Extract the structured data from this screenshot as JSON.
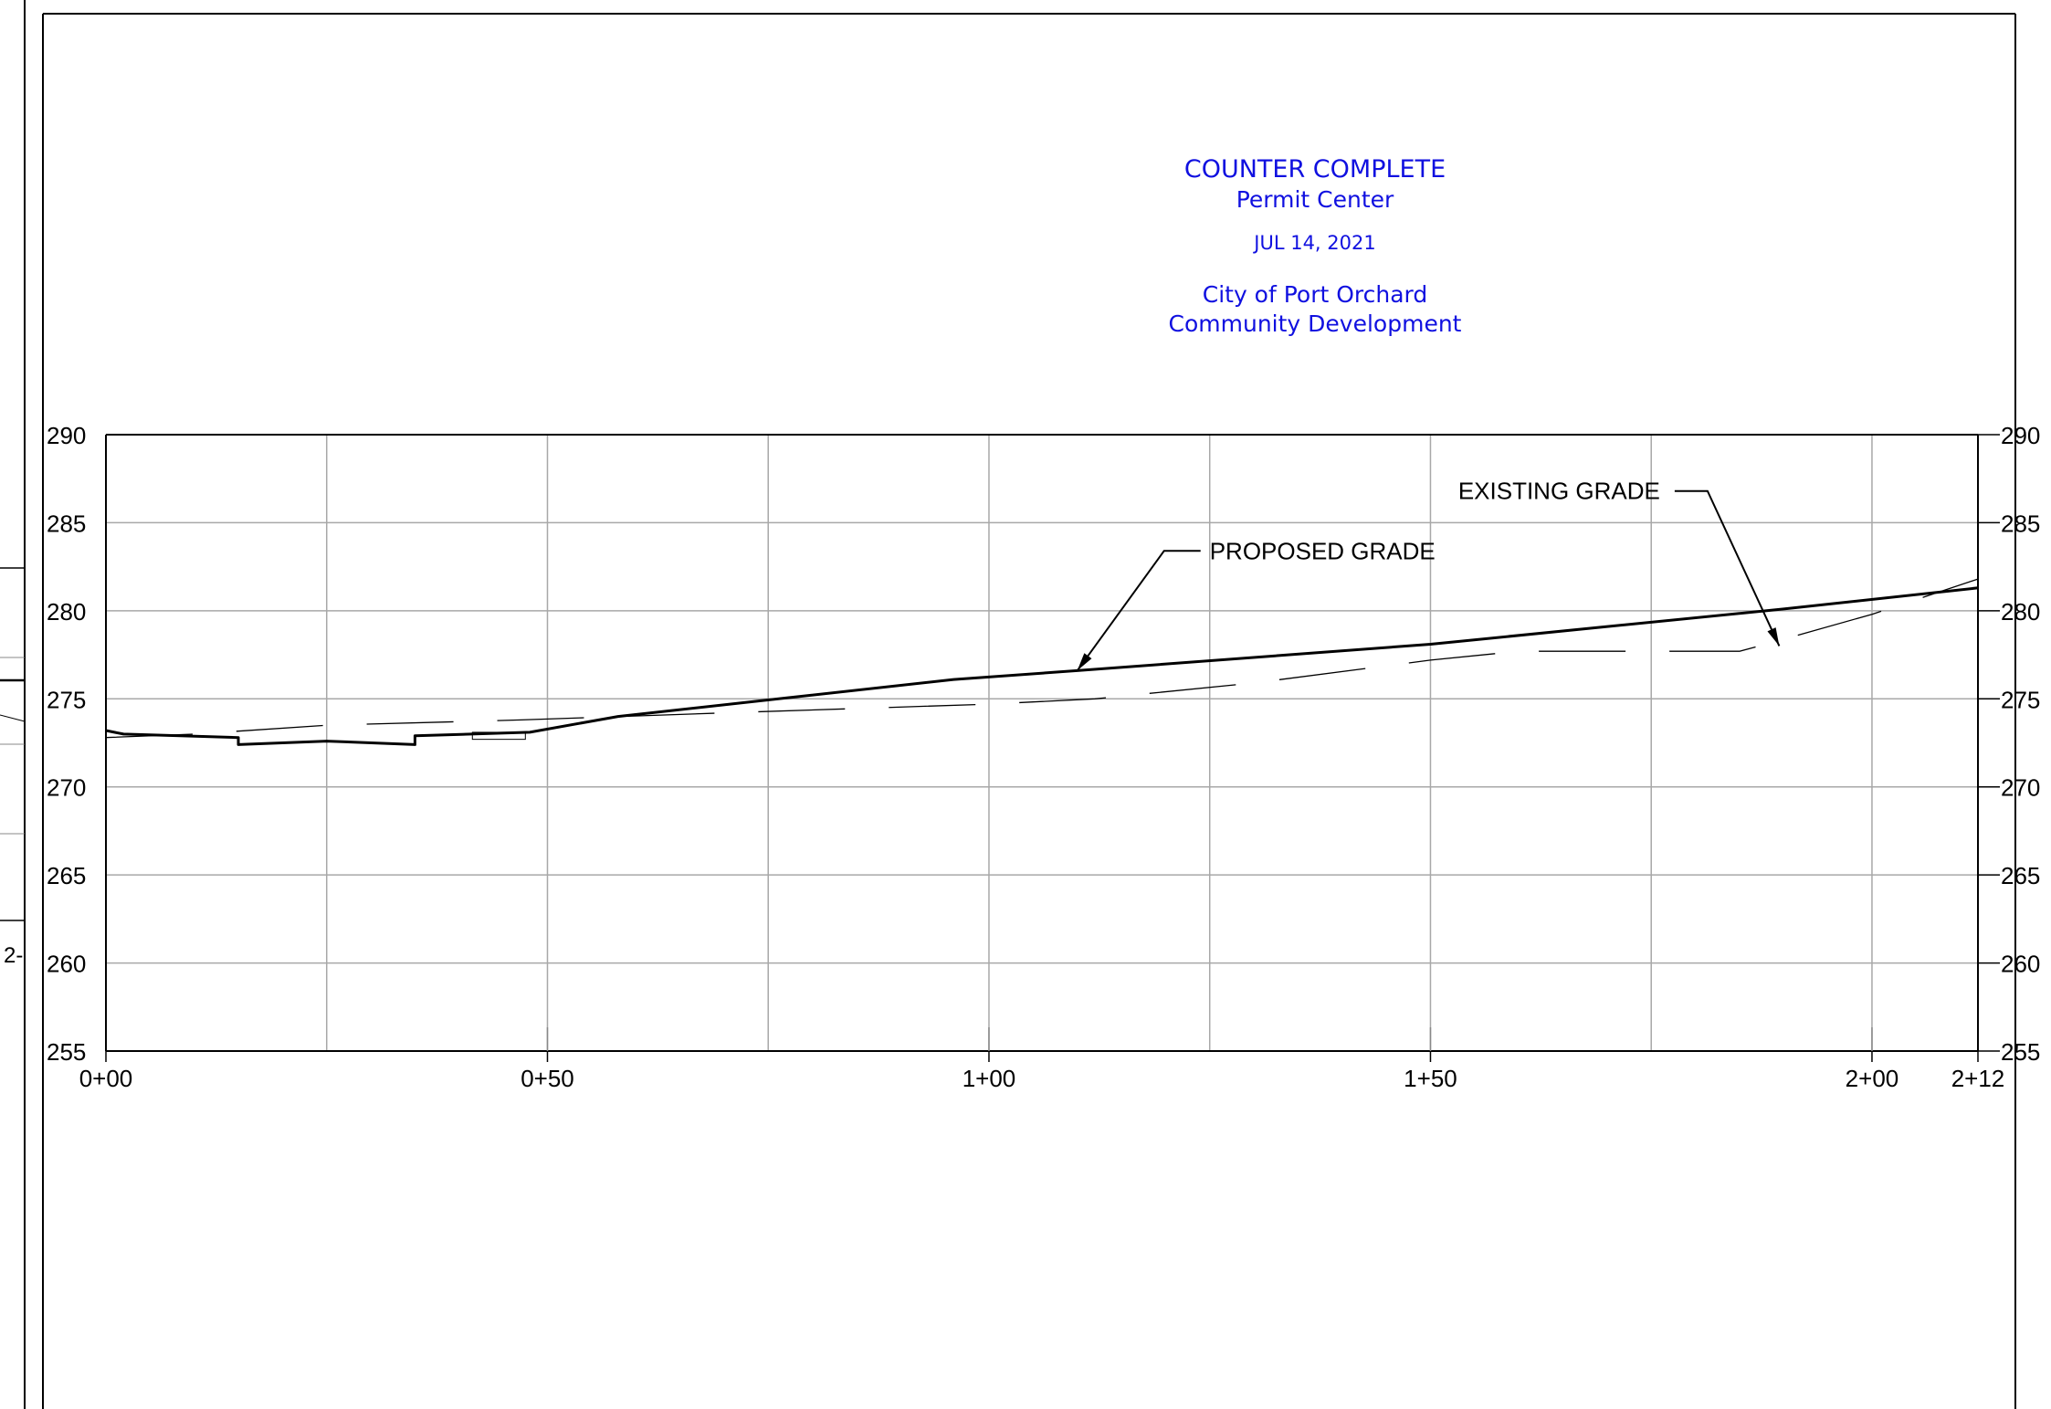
{
  "stamp": {
    "title": "COUNTER COMPLETE",
    "subtitle": "Permit Center",
    "date": "JUL 14, 2021",
    "city": "City of Port Orchard",
    "department": "Community Development"
  },
  "side_fragment_label": "2-",
  "chart_data": {
    "type": "line",
    "title": "",
    "xlabel": "",
    "ylabel": "",
    "xlim": [
      0,
      212
    ],
    "ylim": [
      255,
      290
    ],
    "x_ticks": [
      {
        "value": 0,
        "label": "0+00"
      },
      {
        "value": 50,
        "label": "0+50"
      },
      {
        "value": 100,
        "label": "1+00"
      },
      {
        "value": 150,
        "label": "1+50"
      },
      {
        "value": 200,
        "label": "2+00"
      },
      {
        "value": 212,
        "label": "2+12"
      }
    ],
    "y_ticks": [
      255,
      260,
      265,
      270,
      275,
      280,
      285,
      290
    ],
    "y_tick_labels_left": [
      "255",
      "260",
      "265",
      "270",
      "275",
      "280",
      "285",
      "290"
    ],
    "y_tick_labels_right": [
      "255",
      "260",
      "265",
      "270",
      "275",
      "280",
      "285",
      "290"
    ],
    "grid": true,
    "grid_x_step": 25,
    "series": [
      {
        "name": "PROPOSED GRADE",
        "style": "solid",
        "color": "#000000",
        "x": [
          0,
          2,
          15,
          15,
          25,
          35,
          35,
          48,
          58,
          96,
          110,
          150,
          190,
          212
        ],
        "y": [
          273.2,
          273.0,
          272.8,
          272.4,
          272.6,
          272.4,
          272.9,
          273.1,
          274.0,
          276.1,
          276.6,
          278.1,
          280.1,
          281.3
        ]
      },
      {
        "name": "EXISTING GRADE",
        "style": "dashed",
        "color": "#000000",
        "x": [
          0,
          10,
          25,
          47,
          70,
          100,
          112,
          130,
          150,
          160,
          185,
          188,
          200,
          212
        ],
        "y": [
          272.8,
          273.0,
          273.5,
          273.8,
          274.2,
          274.7,
          275.0,
          275.9,
          277.2,
          277.7,
          277.7,
          278.1,
          279.8,
          281.8
        ]
      }
    ],
    "annotations": [
      {
        "text": "PROPOSED GRADE",
        "target_x": 110,
        "target_y": 276.6,
        "label_x": 125,
        "label_y": 283.4
      },
      {
        "text": "EXISTING GRADE",
        "target_x": 189.5,
        "target_y": 278.0,
        "label_x": 176,
        "label_y": 286.8
      }
    ]
  }
}
